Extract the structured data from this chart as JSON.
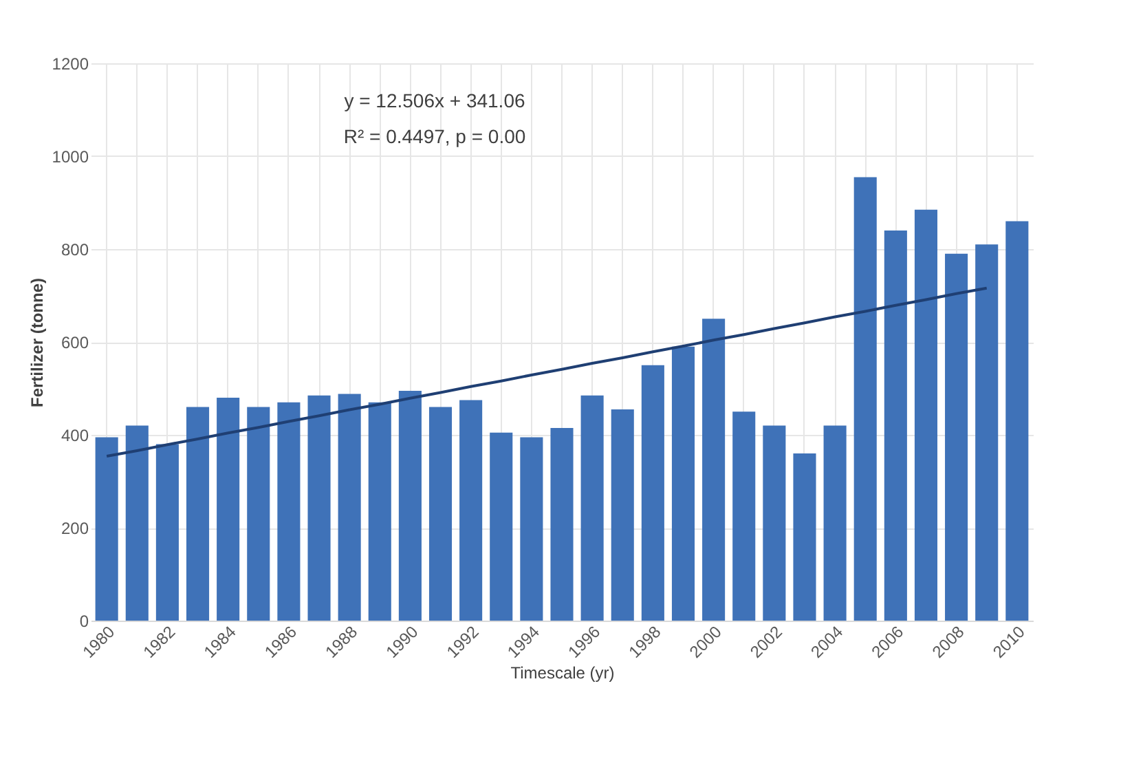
{
  "chart_data": {
    "type": "bar",
    "xlabel": "Timescale (yr)",
    "ylabel": "Fertilizer (tonne)",
    "annotations": [
      "y = 12.506x + 341.06",
      "R² = 0.4497, p = 0.00"
    ],
    "categories": [
      "1980",
      null,
      "1982",
      null,
      "1984",
      null,
      "1986",
      null,
      "1988",
      null,
      "1990",
      null,
      "1992",
      null,
      "1994",
      null,
      "1996",
      null,
      "1998",
      null,
      "2000",
      null,
      "2002",
      null,
      "2004",
      null,
      "2006",
      null,
      "2008",
      null,
      "2010"
    ],
    "series": [
      {
        "color": "#3f72b8",
        "values": [
          395,
          420,
          380,
          460,
          480,
          460,
          470,
          485,
          488,
          470,
          495,
          460,
          475,
          405,
          395,
          415,
          485,
          455,
          550,
          590,
          650,
          450,
          420,
          360,
          420,
          955,
          840,
          885,
          790,
          810,
          860
        ]
      },
      {
        "type": "line",
        "color": "#1f3f73",
        "values": [
          354,
          366,
          379,
          391,
          404,
          416,
          429,
          441,
          454,
          466,
          479,
          491,
          504,
          516,
          529,
          541,
          554,
          566,
          579,
          591,
          604,
          616,
          629,
          641,
          654,
          666,
          679,
          691,
          704,
          716,
          null
        ]
      }
    ],
    "ylim": [
      0,
      1200
    ],
    "yticks": [
      0,
      200,
      400,
      600,
      800,
      1000,
      1200
    ],
    "grid": true
  }
}
